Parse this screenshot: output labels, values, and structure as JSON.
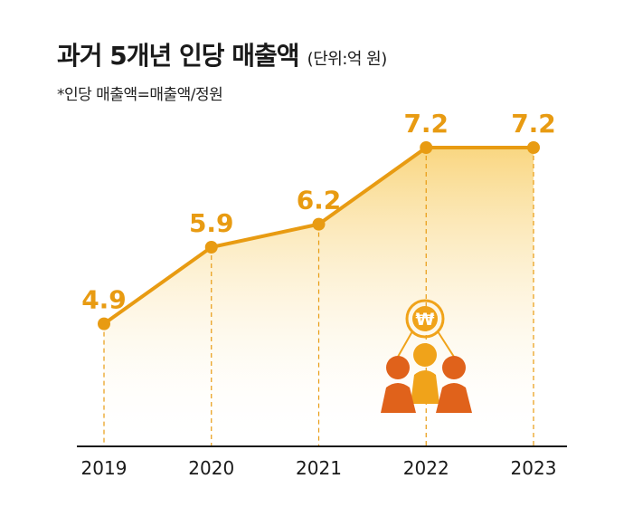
{
  "header": {
    "title": "과거 5개년 인당 매출액",
    "unit": "(단위:억 원)",
    "note": "*인당 매출액=매출액/정원"
  },
  "chart_data": {
    "type": "area",
    "categories": [
      "2019",
      "2020",
      "2021",
      "2022",
      "2023"
    ],
    "values": [
      4.9,
      5.9,
      6.2,
      7.2,
      7.2
    ],
    "data_labels": [
      "4.9",
      "5.9",
      "6.2",
      "7.2",
      "7.2"
    ],
    "ylim": [
      3.3,
      7.2
    ],
    "grid": false,
    "colors": {
      "line": "#e89b12",
      "fill_top": "#f8cf6a",
      "fill_bottom": "#ffffff",
      "label": "#e89b12",
      "axis": "#1a1a1a",
      "icon_person_side": "#e0621b",
      "icon_person_center": "#f0a31a"
    },
    "decorative_icon": "people-with-won-coin-icon"
  }
}
